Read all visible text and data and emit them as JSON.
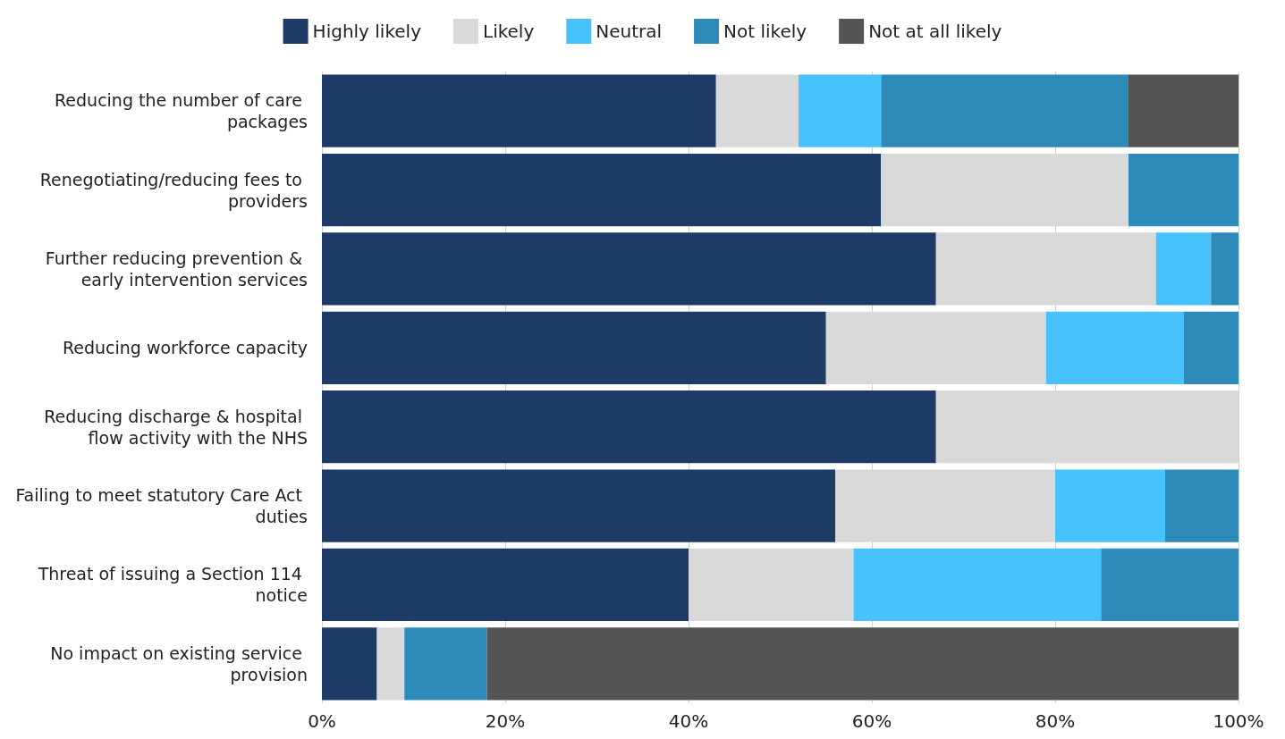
{
  "chart_data": {
    "type": "bar",
    "orientation": "horizontal",
    "stacked": true,
    "legend": "top",
    "grid": "x",
    "categories": [
      "Reducing the number of care packages",
      "Renegotiating/reducing fees to providers",
      "Further reducing prevention & early intervention services",
      "Reducing workforce capacity",
      "Reducing discharge & hospital flow activity with the NHS",
      "Failing to meet statutory Care Act duties",
      "Threat of issuing a Section 114 notice",
      "No impact on existing service provision"
    ],
    "series": [
      {
        "name": "Highly likely",
        "color": "#1e3a66",
        "values": [
          43,
          61,
          67,
          55,
          67,
          56,
          40,
          6
        ]
      },
      {
        "name": "Likely",
        "color": "#d9d9d9",
        "values": [
          9,
          27,
          24,
          24,
          33,
          24,
          18,
          3
        ]
      },
      {
        "name": "Neutral",
        "color": "#47c2fc",
        "values": [
          9,
          0,
          6,
          15,
          0,
          12,
          27,
          0
        ]
      },
      {
        "name": "Not likely",
        "color": "#2e8ab8",
        "values": [
          27,
          12,
          3,
          6,
          0,
          8,
          15,
          9
        ]
      },
      {
        "name": "Not at all likely",
        "color": "#545454",
        "values": [
          12,
          0,
          0,
          0,
          0,
          0,
          0,
          82
        ]
      }
    ],
    "xlim": [
      0,
      100
    ],
    "xticks": [
      {
        "value": 0,
        "label": "0%"
      },
      {
        "value": 20,
        "label": "20%"
      },
      {
        "value": 40,
        "label": "40%"
      },
      {
        "value": 60,
        "label": "60%"
      },
      {
        "value": 80,
        "label": "80%"
      },
      {
        "value": 100,
        "label": "100%"
      }
    ]
  }
}
